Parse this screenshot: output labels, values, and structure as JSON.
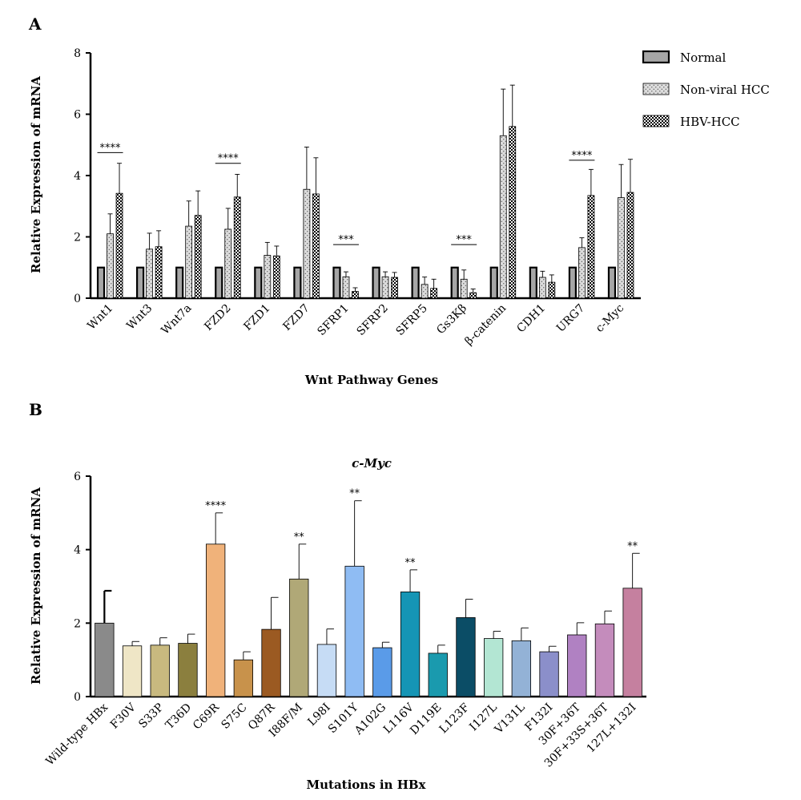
{
  "chart_data": [
    {
      "panel": "A",
      "type": "bar",
      "title": "",
      "xlabel": "Wnt Pathway Genes",
      "ylabel": "Relative Expression of mRNA",
      "ylim": [
        0,
        8
      ],
      "yticks": [
        0,
        2,
        4,
        6,
        8
      ],
      "legend_position": "top-right",
      "categories": [
        "Wnt1",
        "Wnt3",
        "Wnt7a",
        "FZD2",
        "FZD1",
        "FZD7",
        "SFRP1",
        "SFRP2",
        "SFRP5",
        "Gs3Kβ",
        "β-catenin",
        "CDH1",
        "URG7",
        "c-Myc"
      ],
      "series": [
        {
          "name": "Normal",
          "pattern": "solid-gray",
          "color": "#a6a6a6",
          "values": [
            1,
            1,
            1,
            1,
            1,
            1,
            1,
            1,
            1,
            1,
            1,
            1,
            1,
            1
          ],
          "errors": [
            0,
            0,
            0,
            0,
            0,
            0,
            0,
            0,
            0,
            0,
            0,
            0,
            0,
            0
          ]
        },
        {
          "name": "Non-viral HCC",
          "pattern": "dots",
          "color": "#d9d9d9",
          "values": [
            2.1,
            1.6,
            2.35,
            2.25,
            1.4,
            3.55,
            0.7,
            0.7,
            0.45,
            0.62,
            5.3,
            0.68,
            1.65,
            3.28
          ],
          "errors": [
            0.65,
            0.52,
            0.82,
            0.68,
            0.42,
            1.38,
            0.16,
            0.16,
            0.24,
            0.3,
            1.52,
            0.2,
            0.32,
            1.08
          ]
        },
        {
          "name": "HBV-HCC",
          "pattern": "checker",
          "color": "#000000",
          "values": [
            3.42,
            1.68,
            2.7,
            3.3,
            1.38,
            3.4,
            0.22,
            0.68,
            0.32,
            0.18,
            5.6,
            0.52,
            3.35,
            3.45
          ],
          "errors": [
            0.98,
            0.52,
            0.8,
            0.74,
            0.32,
            1.18,
            0.12,
            0.16,
            0.3,
            0.12,
            1.35,
            0.24,
            0.85,
            1.08
          ]
        }
      ],
      "significance": [
        {
          "category": "Wnt1",
          "label": "****",
          "y": 4.75
        },
        {
          "category": "FZD2",
          "label": "****",
          "y": 4.4
        },
        {
          "category": "SFRP1",
          "label": "***",
          "y": 1.75
        },
        {
          "category": "Gs3Kβ",
          "label": "***",
          "y": 1.75
        },
        {
          "category": "URG7",
          "label": "****",
          "y": 4.5
        }
      ]
    },
    {
      "panel": "B",
      "type": "bar",
      "title": "c-Myc",
      "xlabel": "Mutations in HBx",
      "ylabel": "Relative Expression of mRNA",
      "ylim": [
        0,
        6
      ],
      "yticks": [
        0,
        2,
        4,
        6
      ],
      "categories": [
        "Wild-type HBx",
        "F30V",
        "S33P",
        "T36D",
        "C69R",
        "S75C",
        "Q87R",
        "I88F/M",
        "L98I",
        "S101Y",
        "A102G",
        "L116V",
        "D119E",
        "L123F",
        "I127L",
        "V131L",
        "F132I",
        "30F+36T",
        "30F+33S+36T",
        "127L+132I"
      ],
      "values": [
        2.0,
        1.38,
        1.4,
        1.45,
        4.15,
        1.0,
        1.83,
        3.2,
        1.42,
        3.55,
        1.33,
        2.85,
        1.18,
        2.15,
        1.58,
        1.52,
        1.22,
        1.68,
        1.98,
        2.95
      ],
      "errors": [
        0.88,
        0.12,
        0.2,
        0.25,
        0.85,
        0.22,
        0.87,
        0.95,
        0.42,
        1.78,
        0.15,
        0.6,
        0.22,
        0.5,
        0.2,
        0.35,
        0.15,
        0.33,
        0.35,
        0.95
      ],
      "colors": [
        "#8a8a8a",
        "#efe6c6",
        "#c8b97f",
        "#8b7f3e",
        "#f0b27a",
        "#c8924b",
        "#9b5a22",
        "#b0a877",
        "#c6dcf5",
        "#8fbcf3",
        "#5a9be8",
        "#1595b5",
        "#1a9aae",
        "#0b4d66",
        "#b3e6d3",
        "#93b2d6",
        "#8b8fca",
        "#b081c2",
        "#c48cbc",
        "#c5809f"
      ],
      "significance": [
        {
          "category": "C69R",
          "label": "****"
        },
        {
          "category": "I88F/M",
          "label": "**"
        },
        {
          "category": "S101Y",
          "label": "**"
        },
        {
          "category": "L116V",
          "label": "**"
        },
        {
          "category": "127L+132I",
          "label": "**"
        }
      ]
    }
  ]
}
